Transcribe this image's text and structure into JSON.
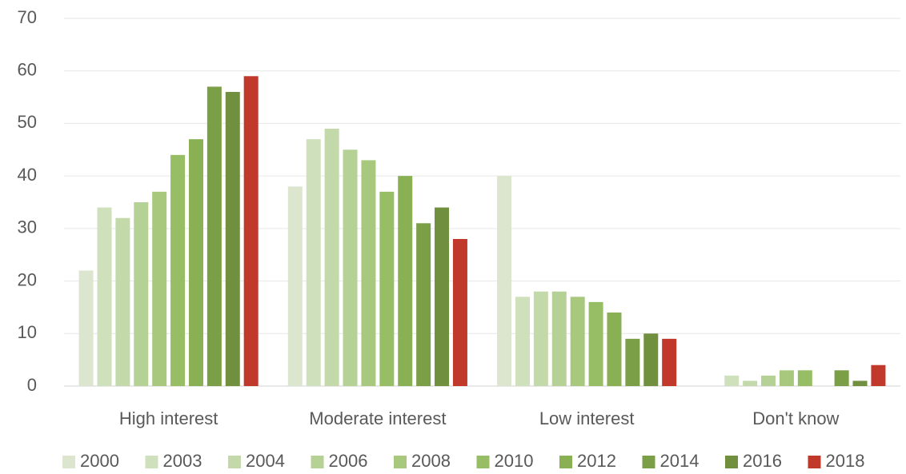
{
  "chart_data": {
    "type": "bar",
    "categories": [
      "High interest",
      "Moderate interest",
      "Low interest",
      "Don't know"
    ],
    "series": [
      {
        "name": "2000",
        "color": "#dce6cf",
        "values": [
          22,
          38,
          40,
          0
        ]
      },
      {
        "name": "2003",
        "color": "#cfe0bc",
        "values": [
          34,
          47,
          17,
          2
        ]
      },
      {
        "name": "2004",
        "color": "#c4d9aa",
        "values": [
          32,
          49,
          18,
          1
        ]
      },
      {
        "name": "2006",
        "color": "#b6d196",
        "values": [
          35,
          45,
          18,
          2
        ]
      },
      {
        "name": "2008",
        "color": "#a7c87d",
        "values": [
          37,
          43,
          17,
          3
        ]
      },
      {
        "name": "2010",
        "color": "#98be65",
        "values": [
          44,
          37,
          16,
          3
        ]
      },
      {
        "name": "2012",
        "color": "#89b052",
        "values": [
          47,
          40,
          14,
          0
        ]
      },
      {
        "name": "2014",
        "color": "#7b9f47",
        "values": [
          57,
          31,
          9,
          3
        ]
      },
      {
        "name": "2016",
        "color": "#708f3f",
        "values": [
          56,
          34,
          10,
          1
        ]
      },
      {
        "name": "2018",
        "color": "#c0392b",
        "values": [
          59,
          28,
          9,
          4
        ]
      }
    ],
    "ylim": [
      0,
      70
    ],
    "yticks": [
      0,
      10,
      20,
      30,
      40,
      50,
      60,
      70
    ],
    "grid": true,
    "legend": "bottom"
  }
}
